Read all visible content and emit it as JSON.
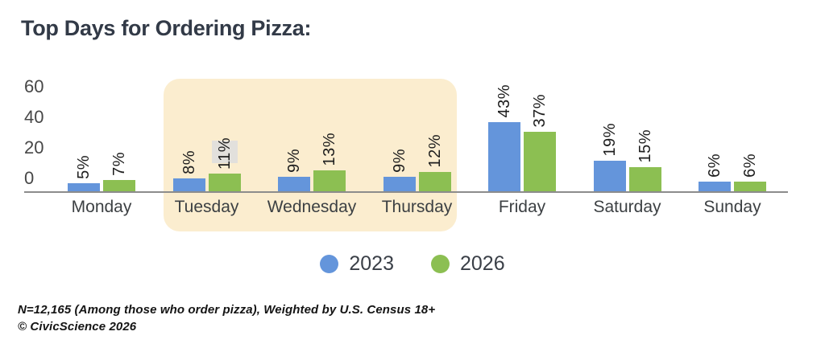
{
  "title": "Top Days for Ordering Pizza:",
  "chart_data": {
    "type": "bar",
    "categories": [
      "Monday",
      "Tuesday",
      "Wednesday",
      "Thursday",
      "Friday",
      "Saturday",
      "Sunday"
    ],
    "series": [
      {
        "name": "2023",
        "color": "#6495DB",
        "values": [
          5,
          8,
          9,
          9,
          43,
          19,
          6
        ]
      },
      {
        "name": "2026",
        "color": "#8CBF52",
        "values": [
          7,
          11,
          13,
          12,
          37,
          15,
          6
        ]
      }
    ],
    "value_suffix": "%",
    "yticks": [
      60,
      40,
      20,
      0
    ],
    "ylim": [
      0,
      60
    ],
    "grid": false,
    "legend_position": "bottom",
    "highlight": {
      "categories": [
        "Tuesday",
        "Wednesday",
        "Thursday"
      ],
      "color": "#FBEDCF"
    },
    "label_highlight": {
      "category": "Tuesday",
      "series": "2026",
      "color": "#E2E0DC"
    }
  },
  "footer": {
    "line1": "N=12,165 (Among those who order pizza), Weighted by U.S. Census 18+",
    "line2": "© CivicScience 2026"
  }
}
